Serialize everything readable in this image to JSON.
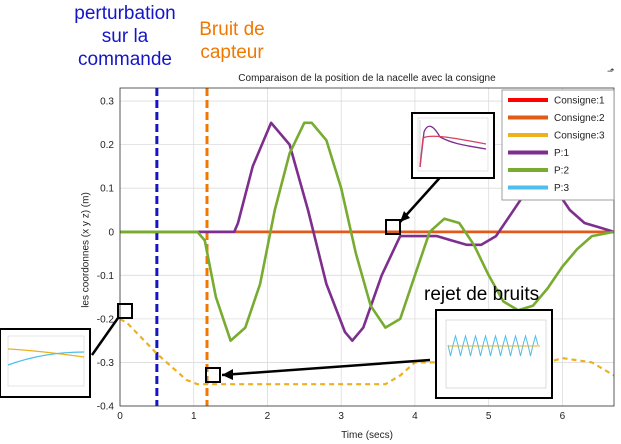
{
  "annotations": {
    "perturbation": [
      "perturbation",
      "sur la",
      "commande"
    ],
    "bruit": [
      "Bruit de",
      "capteur"
    ],
    "rejet": "rejet de bruits",
    "blue_color": "#1515c8",
    "orange_color": "#f07800"
  },
  "chart_data": {
    "type": "line",
    "title": "Comparaison de la position de la nacelle avec la consigne",
    "xlabel": "Time (secs)",
    "ylabel": "les coordonnes (x y z) (m)",
    "xlim": [
      0,
      6.7
    ],
    "ylim": [
      -0.4,
      0.33
    ],
    "xticks": [
      0,
      1,
      2,
      3,
      4,
      5,
      6
    ],
    "yticks": [
      -0.4,
      -0.3,
      -0.2,
      -0.1,
      0,
      0.1,
      0.2,
      0.3
    ],
    "ytick_labels": [
      "-0.4",
      "-0.3",
      "-0.2",
      "-0.1",
      "0",
      "0.1",
      "0.2",
      "0.3"
    ],
    "grid": true,
    "legend_position": "top-right",
    "series": [
      {
        "name": "Consigne:1",
        "color": "#ff0000",
        "x": [
          0,
          6.7
        ],
        "y": [
          0,
          0
        ]
      },
      {
        "name": "Consigne:2",
        "color": "#e05a1a",
        "x": [
          0,
          6.7
        ],
        "y": [
          0,
          0
        ]
      },
      {
        "name": "Consigne:3",
        "color": "#edb120",
        "x": [
          0,
          0.1,
          0.5,
          0.9,
          1.05,
          1.2,
          2.0,
          2.5,
          3.0,
          3.6,
          3.8,
          4.0,
          4.4,
          4.8,
          5.2,
          5.6,
          6.0,
          6.4,
          6.7
        ],
        "y": [
          -0.2,
          -0.21,
          -0.28,
          -0.34,
          -0.35,
          -0.35,
          -0.35,
          -0.35,
          -0.35,
          -0.35,
          -0.33,
          -0.3,
          -0.3,
          -0.29,
          -0.3,
          -0.31,
          -0.29,
          -0.3,
          -0.33
        ]
      },
      {
        "name": "P:1",
        "color": "#7e2f8e",
        "x": [
          0,
          1.0,
          1.55,
          1.6,
          1.8,
          2.05,
          2.3,
          2.55,
          2.8,
          3.05,
          3.15,
          3.3,
          3.55,
          3.8,
          4.05,
          4.3,
          4.5,
          4.7,
          4.9,
          5.1,
          5.3,
          5.5,
          5.7,
          5.9,
          6.1,
          6.3,
          6.5,
          6.7
        ],
        "y": [
          0,
          0,
          0,
          0.02,
          0.15,
          0.25,
          0.2,
          0.05,
          -0.12,
          -0.23,
          -0.25,
          -0.22,
          -0.1,
          -0.01,
          -0.01,
          -0.01,
          -0.02,
          -0.03,
          -0.03,
          -0.01,
          0.04,
          0.09,
          0.12,
          0.1,
          0.05,
          0.02,
          0.01,
          0.0
        ]
      },
      {
        "name": "P:2",
        "color": "#77ac30",
        "x": [
          0,
          1.05,
          1.15,
          1.3,
          1.5,
          1.7,
          1.9,
          2.1,
          2.3,
          2.5,
          2.6,
          2.8,
          3.0,
          3.2,
          3.4,
          3.6,
          3.8,
          4.0,
          4.2,
          4.4,
          4.6,
          4.8,
          5.0,
          5.2,
          5.4,
          5.6,
          5.8,
          6.0,
          6.2,
          6.4,
          6.7
        ],
        "y": [
          0,
          0,
          -0.02,
          -0.15,
          -0.25,
          -0.22,
          -0.12,
          0.05,
          0.18,
          0.25,
          0.25,
          0.21,
          0.1,
          -0.05,
          -0.17,
          -0.22,
          -0.2,
          -0.1,
          0.0,
          0.03,
          0.02,
          -0.03,
          -0.1,
          -0.16,
          -0.18,
          -0.17,
          -0.13,
          -0.08,
          -0.04,
          -0.01,
          0.0
        ]
      },
      {
        "name": "P:3",
        "color": "#4dbeee",
        "x": [
          0,
          0.1,
          0.5,
          0.9,
          1.05,
          1.2,
          2.0,
          2.5,
          3.0,
          3.6,
          3.8,
          4.0,
          4.4,
          4.8,
          5.2,
          5.6,
          6.0,
          6.4,
          6.7
        ],
        "y": [
          -0.2,
          -0.21,
          -0.28,
          -0.34,
          -0.35,
          -0.35,
          -0.35,
          -0.35,
          -0.35,
          -0.35,
          -0.33,
          -0.3,
          -0.3,
          -0.29,
          -0.3,
          -0.31,
          -0.29,
          -0.3,
          -0.33
        ]
      }
    ],
    "annotation_lines": [
      {
        "x": 0.5,
        "color": "#1515c8",
        "style": "dashed"
      },
      {
        "x": 1.18,
        "color": "#f07800",
        "style": "dashed"
      }
    ]
  }
}
